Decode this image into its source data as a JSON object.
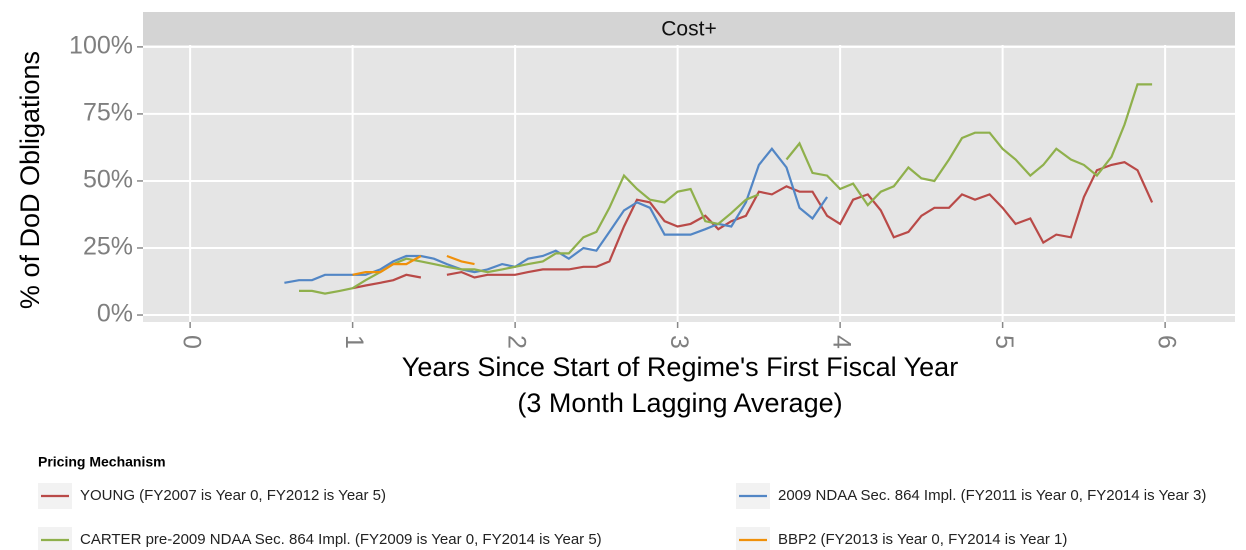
{
  "chart_data": {
    "type": "line",
    "facet_title": "Cost+",
    "xlabel": "Years Since Start of Regime's First Fiscal Year",
    "xlabel_sub": "(3 Month Lagging Average)",
    "ylabel": "% of DoD Obligations",
    "legend_title": "Pricing Mechanism",
    "legend": "bottom",
    "grid": true,
    "xlim": [
      -0.29,
      6.43
    ],
    "ylim": [
      -2.6,
      100.7
    ],
    "xticks": [
      0,
      1,
      2,
      3,
      4,
      5,
      6
    ],
    "yticks": [
      {
        "value": 0,
        "label": "0%"
      },
      {
        "value": 25,
        "label": "25%"
      },
      {
        "value": 50,
        "label": "50%"
      },
      {
        "value": 75,
        "label": "75%"
      },
      {
        "value": 100,
        "label": "100%"
      }
    ],
    "series": [
      {
        "name": "YOUNG (FY2007 is Year 0, FY2012 is Year 5)",
        "color": "#b94a48",
        "x": [
          1.0,
          1.08,
          1.17,
          1.25,
          1.33,
          1.42,
          1.5,
          1.58,
          1.67,
          1.75,
          1.83,
          1.92,
          2.0,
          2.08,
          2.17,
          2.25,
          2.33,
          2.42,
          2.5,
          2.58,
          2.67,
          2.75,
          2.83,
          2.92,
          3.0,
          3.08,
          3.17,
          3.25,
          3.33,
          3.42,
          3.5,
          3.58,
          3.67,
          3.75,
          3.83,
          3.92,
          4.0,
          4.08,
          4.17,
          4.25,
          4.33,
          4.42,
          4.5,
          4.58,
          4.67,
          4.75,
          4.83,
          4.92,
          5.0,
          5.08,
          5.17,
          5.25,
          5.33,
          5.42,
          5.5,
          5.58,
          5.67,
          5.75,
          5.83,
          5.92
        ],
        "values": [
          10,
          11,
          12,
          13,
          15,
          14,
          null,
          15,
          16,
          14,
          15,
          15,
          15,
          16,
          17,
          17,
          17,
          18,
          18,
          20,
          33,
          43,
          42,
          35,
          33,
          34,
          37,
          32,
          35,
          37,
          46,
          45,
          48,
          46,
          46,
          37,
          34,
          43,
          45,
          39,
          29,
          31,
          37,
          40,
          40,
          45,
          43,
          45,
          40,
          34,
          36,
          27,
          30,
          29,
          44,
          54,
          56,
          57,
          54,
          42
        ]
      },
      {
        "name": "2009 NDAA Sec. 864 Impl. (FY2011 is Year 0, FY2014 is Year 3)",
        "color": "#5286c5",
        "x": [
          0.58,
          0.67,
          0.75,
          0.83,
          0.92,
          1.0,
          1.08,
          1.17,
          1.25,
          1.33,
          1.42,
          1.5,
          1.58,
          1.67,
          1.75,
          1.83,
          1.92,
          2.0,
          2.08,
          2.17,
          2.25,
          2.33,
          2.42,
          2.5,
          2.58,
          2.67,
          2.75,
          2.83,
          2.92,
          3.0,
          3.08,
          3.17,
          3.25,
          3.33,
          3.42,
          3.5,
          3.58,
          3.67,
          3.75,
          3.83,
          3.92
        ],
        "values": [
          12,
          13,
          13,
          15,
          15,
          15,
          15,
          17,
          20,
          22,
          22,
          21,
          19,
          17,
          16,
          17,
          19,
          18,
          21,
          22,
          24,
          21,
          25,
          24,
          31,
          39,
          42,
          40,
          30,
          30,
          30,
          32,
          34,
          33,
          42,
          56,
          62,
          55,
          40,
          36,
          44
        ]
      },
      {
        "name": "CARTER pre-2009 NDAA Sec. 864 Impl. (FY2009 is Year 0, FY2014 is Year 5)",
        "color": "#8fb04c",
        "x": [
          0.67,
          0.75,
          0.83,
          0.92,
          1.0,
          1.08,
          1.17,
          1.25,
          1.33,
          1.42,
          1.5,
          1.58,
          1.67,
          1.75,
          1.83,
          1.92,
          2.0,
          2.08,
          2.17,
          2.25,
          2.33,
          2.42,
          2.5,
          2.58,
          2.67,
          2.75,
          2.83,
          2.92,
          3.0,
          3.08,
          3.17,
          3.25,
          3.33,
          3.42,
          3.5,
          3.58,
          3.67,
          3.75,
          3.83,
          3.92,
          4.0,
          4.08,
          4.17,
          4.25,
          4.33,
          4.42,
          4.5,
          4.58,
          4.67,
          4.75,
          4.83,
          4.92,
          5.0,
          5.08,
          5.17,
          5.25,
          5.33,
          5.42,
          5.5,
          5.58,
          5.67,
          5.75,
          5.83,
          5.92
        ],
        "values": [
          9,
          9,
          8,
          9,
          10,
          13,
          16,
          19,
          21,
          20,
          19,
          18,
          17,
          17,
          16,
          17,
          18,
          19,
          20,
          23,
          23,
          29,
          31,
          40,
          52,
          47,
          43,
          42,
          46,
          47,
          35,
          34,
          38,
          43,
          45,
          null,
          58,
          64,
          53,
          52,
          47,
          49,
          41,
          46,
          48,
          55,
          51,
          50,
          58,
          66,
          68,
          68,
          62,
          58,
          52,
          56,
          62,
          58,
          56,
          52,
          59,
          71,
          86,
          86
        ]
      },
      {
        "name": "BBP2 (FY2013 is Year 0, FY2014 is Year 1)",
        "color": "#f0900a",
        "x": [
          1.0,
          1.08,
          1.17,
          1.25,
          1.33,
          1.42,
          1.5,
          1.58,
          1.67,
          1.75
        ],
        "values": [
          15,
          16,
          16,
          19,
          19,
          22,
          null,
          22,
          20,
          19
        ]
      }
    ]
  }
}
